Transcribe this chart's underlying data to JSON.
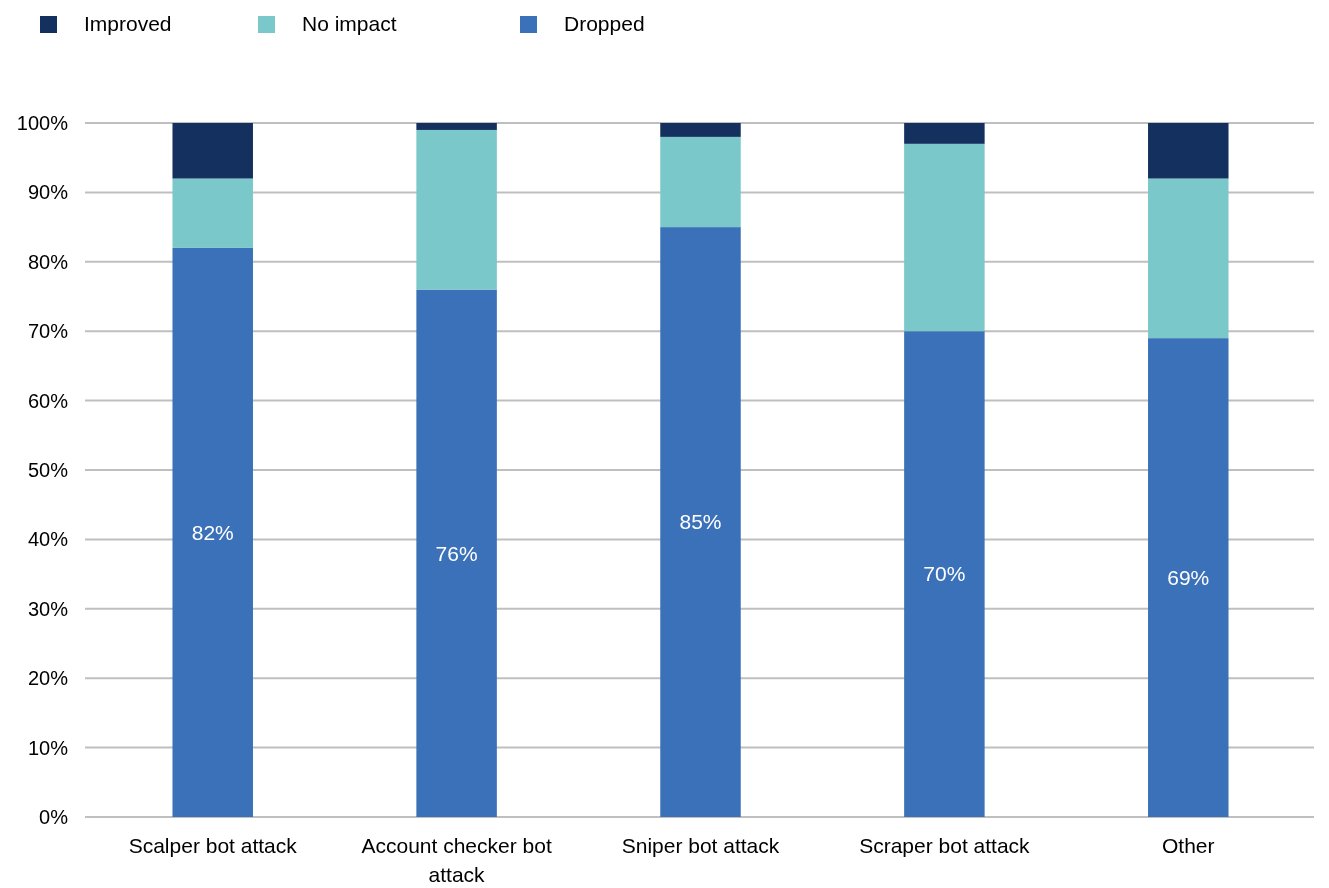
{
  "chart_data": {
    "type": "bar",
    "stacked": true,
    "categories": [
      "Scalper bot attack",
      "Account checker bot attack",
      "Sniper bot attack",
      "Scraper bot attack",
      "Other"
    ],
    "series": [
      {
        "name": "Dropped",
        "color": "#3b71b8",
        "values": [
          82,
          76,
          85,
          70,
          69
        ],
        "value_labels": [
          "82%",
          "76%",
          "85%",
          "70%",
          "69%"
        ]
      },
      {
        "name": "No impact",
        "color": "#7ac8c9",
        "values": [
          10,
          23,
          13,
          27,
          23
        ]
      },
      {
        "name": "Improved",
        "color": "#14305e",
        "values": [
          8,
          1,
          2,
          3,
          8
        ]
      }
    ],
    "ylim": [
      0,
      100
    ],
    "yticks": [
      {
        "value": 0,
        "label": "0%"
      },
      {
        "value": 10,
        "label": "10%"
      },
      {
        "value": 20,
        "label": "20%"
      },
      {
        "value": 30,
        "label": "30%"
      },
      {
        "value": 40,
        "label": "40%"
      },
      {
        "value": 50,
        "label": "50%"
      },
      {
        "value": 60,
        "label": "60%"
      },
      {
        "value": 70,
        "label": "70%"
      },
      {
        "value": 80,
        "label": "80%"
      },
      {
        "value": 90,
        "label": "90%"
      },
      {
        "value": 100,
        "label": "100%"
      }
    ],
    "grid": "y",
    "legend": "top left"
  }
}
